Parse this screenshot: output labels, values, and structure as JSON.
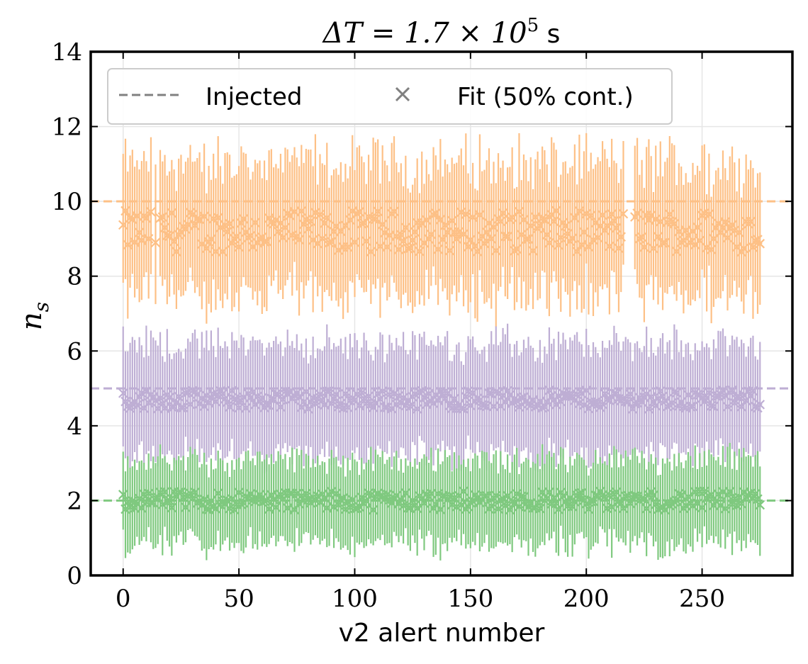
{
  "chart_data": {
    "type": "scatter",
    "title": "ΔT = 1.7 × 10⁵ s",
    "title_parts": {
      "prefix": "ΔT = 1.7 × 10",
      "exponent": "5",
      "unit": " s"
    },
    "xlabel": "v2 alert number",
    "ylabel": "n",
    "ylabel_subscript": "s",
    "xlim": [
      -14,
      289
    ],
    "ylim": [
      0,
      14
    ],
    "xticks": [
      0,
      50,
      100,
      150,
      200,
      250
    ],
    "yticks": [
      0,
      2,
      4,
      6,
      8,
      10,
      12,
      14
    ],
    "grid": true,
    "legend": {
      "placement": "top-left",
      "entries": [
        {
          "label": "Injected",
          "marker": "dashed-line",
          "color": "#808080"
        },
        {
          "label": "Fit (50% cont.)",
          "marker": "x",
          "color": "#808080"
        }
      ]
    },
    "n_alerts": 276,
    "series": [
      {
        "injected": 10,
        "fit_center": 9.2,
        "err_low": 1.65,
        "err_high": 1.75,
        "color": "#fdc086"
      },
      {
        "injected": 5,
        "fit_center": 4.7,
        "err_low": 1.45,
        "err_high": 1.45,
        "color": "#beaed4"
      },
      {
        "injected": 2,
        "fit_center": 2.0,
        "err_low": 1.1,
        "err_high": 1.05,
        "color": "#7fc97f"
      }
    ]
  }
}
